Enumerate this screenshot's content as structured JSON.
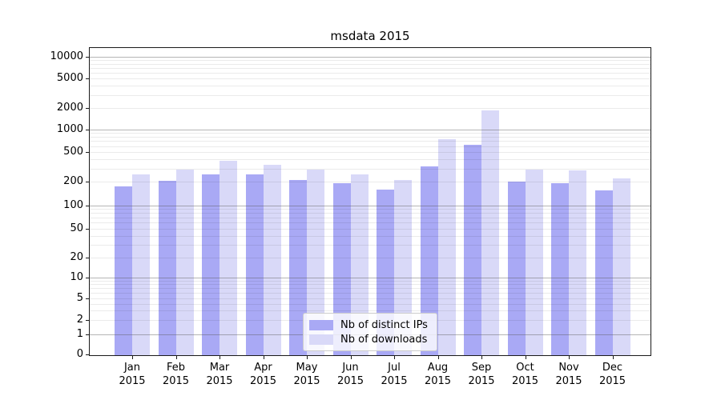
{
  "title": "msdata 2015",
  "legend": {
    "items": [
      {
        "label": "Nb of distinct IPs",
        "color": "#a9a9f5"
      },
      {
        "label": "Nb of downloads",
        "color": "#d9d9f8"
      }
    ]
  },
  "chart_data": {
    "type": "bar",
    "title": "msdata 2015",
    "categories": [
      "Jan",
      "Feb",
      "Mar",
      "Apr",
      "May",
      "Jun",
      "Jul",
      "Aug",
      "Sep",
      "Oct",
      "Nov",
      "Dec"
    ],
    "category_year": "2015",
    "series": [
      {
        "name": "Nb of distinct IPs",
        "color": "#a9a9f5",
        "values": [
          175,
          205,
          250,
          250,
          210,
          190,
          160,
          320,
          630,
          200,
          190,
          155
        ]
      },
      {
        "name": "Nb of downloads",
        "color": "#d9d9f8",
        "values": [
          250,
          290,
          380,
          335,
          290,
          250,
          210,
          750,
          1850,
          290,
          285,
          220
        ]
      }
    ],
    "xlabel": "",
    "ylabel": "",
    "y_axis": {
      "scale": "symlog",
      "tick_values": [
        0,
        1,
        2,
        5,
        10,
        20,
        50,
        100,
        200,
        500,
        1000,
        2000,
        5000,
        10000
      ],
      "range": [
        0,
        13000
      ]
    },
    "grid": {
      "major": true,
      "minor": true
    },
    "legend_position": "lower center inside plot"
  }
}
